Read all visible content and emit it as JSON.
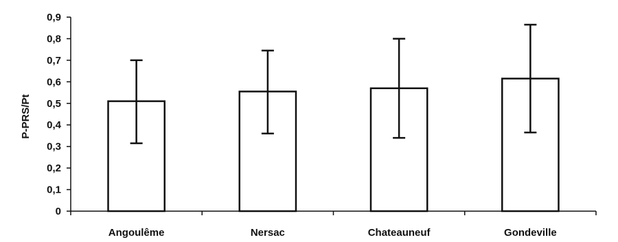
{
  "chart_data": {
    "type": "bar",
    "title": "",
    "xlabel": "",
    "ylabel": "P-PRS/Pt",
    "categories": [
      "Angoulême",
      "Nersac",
      "Chateauneuf",
      "Gondeville"
    ],
    "values": [
      0.51,
      0.555,
      0.57,
      0.615
    ],
    "error_bars": [
      {
        "low": 0.315,
        "high": 0.7
      },
      {
        "low": 0.36,
        "high": 0.745
      },
      {
        "low": 0.34,
        "high": 0.8
      },
      {
        "low": 0.365,
        "high": 0.865
      }
    ],
    "ylim": [
      0,
      0.9
    ],
    "yticks": [
      0,
      0.1,
      0.2,
      0.3,
      0.4,
      0.5,
      0.6,
      0.7,
      0.8,
      0.9
    ],
    "ytick_labels": [
      "0",
      "0,1",
      "0,2",
      "0,3",
      "0,4",
      "0,5",
      "0,6",
      "0,7",
      "0,8",
      "0,9"
    ],
    "grid": false,
    "legend": "none",
    "colors": {
      "bar_fill": "#ffffff",
      "stroke": "#111111"
    }
  }
}
